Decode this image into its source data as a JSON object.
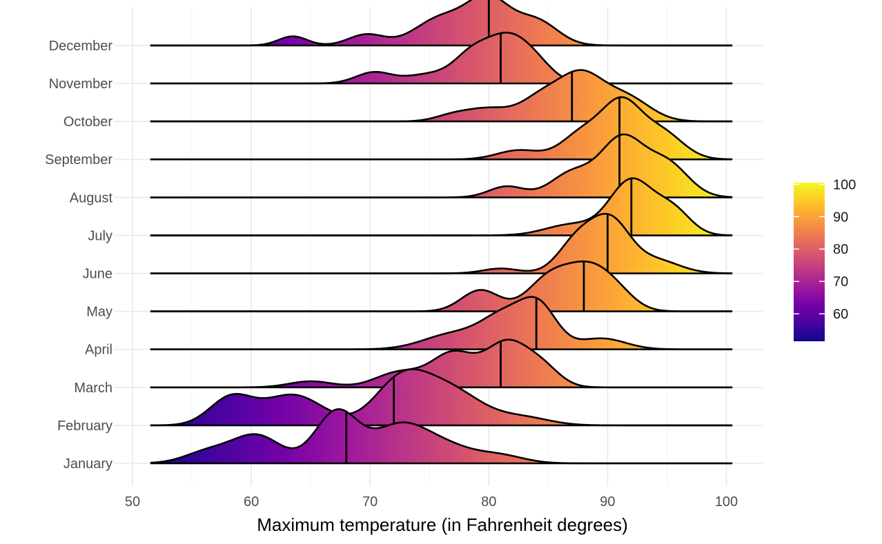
{
  "chart_data": {
    "type": "ridgeline",
    "title": "",
    "xlabel": "Maximum temperature (in Fahrenheit degrees)",
    "ylabel": "",
    "xlim": [
      50,
      100
    ],
    "x_ticks": [
      50,
      60,
      70,
      80,
      90,
      100
    ],
    "x_tick_labels": [
      "50",
      "60",
      "70",
      "80",
      "90",
      "100"
    ],
    "x_min": 51.5,
    "x_max": 100.5,
    "grid": true,
    "legend": {
      "placement": "right",
      "type": "colorbar",
      "palette": "plasma",
      "range": [
        51.5,
        100.5
      ],
      "ticks": [
        60,
        70,
        80,
        90,
        100
      ],
      "tick_labels": [
        "60",
        "70",
        "80",
        "90",
        "100"
      ]
    },
    "colors": {
      "plasma_stops": [
        "#0d0887",
        "#46039f",
        "#7201a8",
        "#9c179e",
        "#bd3786",
        "#d8576b",
        "#ed7953",
        "#fb9f3a",
        "#fdca26",
        "#f0f921"
      ],
      "grid": "#ebebeb",
      "outline": "#000000"
    },
    "series": [
      {
        "name": "January",
        "median": 68,
        "components": [
          [
            60.5,
            2.0,
            0.45
          ],
          [
            67.2,
            1.8,
            0.85
          ],
          [
            72.3,
            2.2,
            0.55
          ],
          [
            76.0,
            2.5,
            0.3
          ],
          [
            81.0,
            2.0,
            0.12
          ],
          [
            56.5,
            2.0,
            0.2
          ]
        ]
      },
      {
        "name": "February",
        "median": 72,
        "components": [
          [
            58.3,
            1.8,
            0.45
          ],
          [
            63.5,
            2.5,
            0.5
          ],
          [
            72.5,
            2.2,
            0.65
          ],
          [
            76.5,
            2.8,
            0.6
          ],
          [
            83.0,
            2.2,
            0.12
          ]
        ]
      },
      {
        "name": "March",
        "median": 81,
        "components": [
          [
            65.0,
            1.8,
            0.1
          ],
          [
            72.5,
            2.0,
            0.25
          ],
          [
            77.0,
            1.8,
            0.55
          ],
          [
            81.5,
            1.8,
            0.72
          ],
          [
            84.5,
            1.5,
            0.3
          ]
        ]
      },
      {
        "name": "April",
        "median": 84,
        "components": [
          [
            77.0,
            2.5,
            0.25
          ],
          [
            81.5,
            2.0,
            0.55
          ],
          [
            84.3,
            1.5,
            0.6
          ],
          [
            89.5,
            2.0,
            0.18
          ]
        ]
      },
      {
        "name": "May",
        "median": 88,
        "components": [
          [
            79.3,
            1.6,
            0.35
          ],
          [
            85.0,
            1.8,
            0.5
          ],
          [
            88.5,
            2.0,
            0.7
          ],
          [
            91.0,
            1.5,
            0.15
          ]
        ]
      },
      {
        "name": "June",
        "median": 90,
        "components": [
          [
            81.0,
            1.5,
            0.08
          ],
          [
            87.5,
            1.6,
            0.55
          ],
          [
            90.3,
            1.6,
            0.8
          ],
          [
            94.0,
            2.0,
            0.22
          ]
        ]
      },
      {
        "name": "July",
        "median": 92,
        "components": [
          [
            87.0,
            2.2,
            0.18
          ],
          [
            92.0,
            1.8,
            0.9
          ],
          [
            95.5,
            1.5,
            0.4
          ]
        ]
      },
      {
        "name": "August",
        "median": 91,
        "components": [
          [
            81.5,
            1.5,
            0.18
          ],
          [
            87.0,
            1.8,
            0.4
          ],
          [
            91.2,
            1.8,
            0.95
          ],
          [
            95.0,
            1.8,
            0.55
          ]
        ]
      },
      {
        "name": "September",
        "median": 91,
        "components": [
          [
            82.5,
            1.8,
            0.15
          ],
          [
            88.0,
            1.8,
            0.45
          ],
          [
            91.2,
            1.6,
            0.85
          ],
          [
            94.5,
            1.8,
            0.45
          ]
        ]
      },
      {
        "name": "October",
        "median": 87,
        "components": [
          [
            77.0,
            1.5,
            0.1
          ],
          [
            80.0,
            1.8,
            0.2
          ],
          [
            84.5,
            1.8,
            0.4
          ],
          [
            87.8,
            1.8,
            0.7
          ],
          [
            91.5,
            2.0,
            0.4
          ]
        ]
      },
      {
        "name": "November",
        "median": 81,
        "components": [
          [
            70.3,
            1.5,
            0.18
          ],
          [
            75.0,
            2.0,
            0.15
          ],
          [
            78.5,
            1.5,
            0.4
          ],
          [
            81.5,
            1.8,
            0.72
          ],
          [
            84.0,
            1.5,
            0.25
          ]
        ]
      },
      {
        "name": "December",
        "median": 80,
        "components": [
          [
            63.5,
            1.2,
            0.15
          ],
          [
            69.7,
            1.5,
            0.18
          ],
          [
            76.0,
            2.2,
            0.45
          ],
          [
            80.0,
            1.8,
            0.72
          ],
          [
            84.0,
            1.8,
            0.4
          ]
        ]
      }
    ]
  }
}
